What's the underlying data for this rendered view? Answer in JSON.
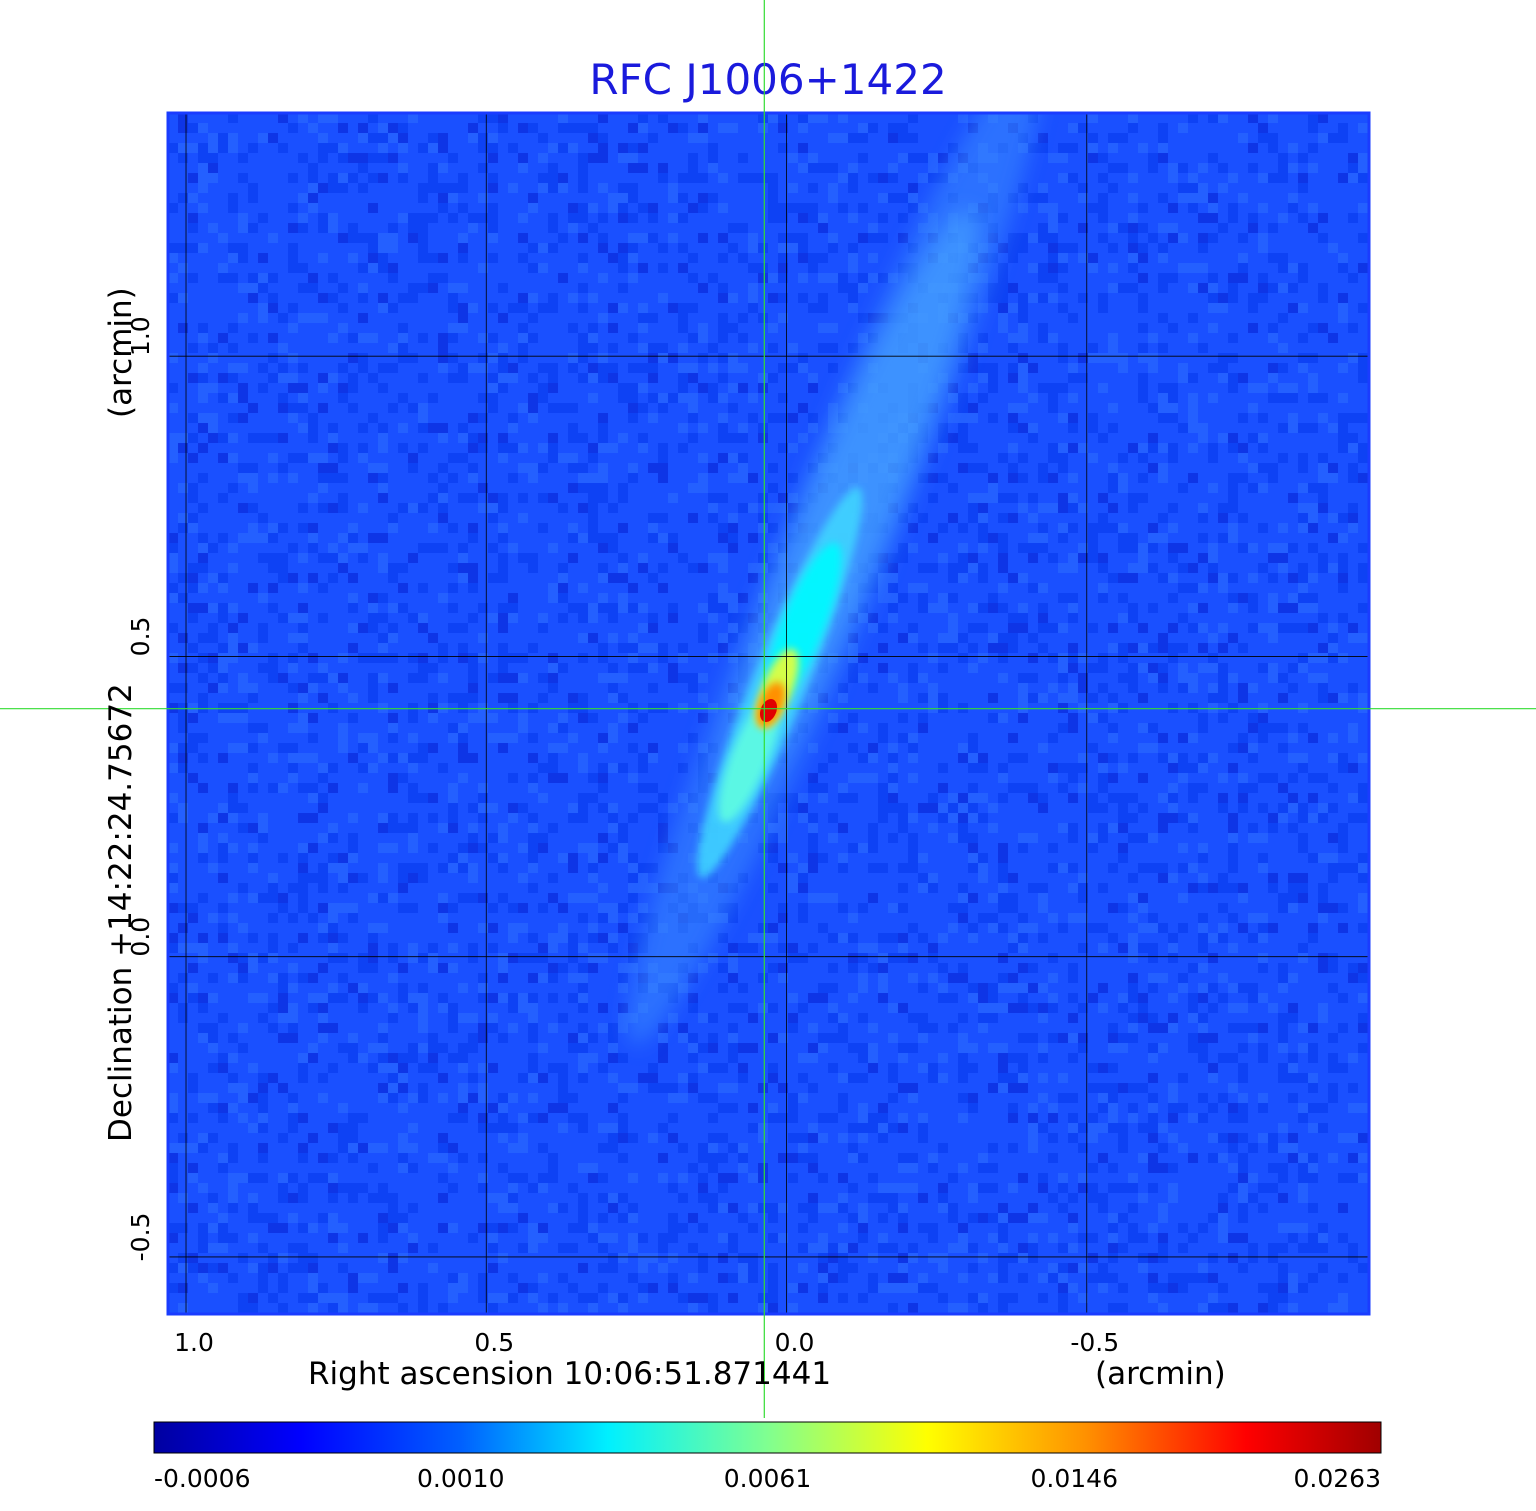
{
  "chart_data": {
    "type": "heatmap",
    "title": "RFC J1006+1422",
    "xlabel": "Right ascension  10:06:51.871441",
    "xunit": "(arcmin)",
    "ylabel": "Declination  +14:22:24.75672",
    "yunit": "(arcmin)",
    "x_ticks": [
      {
        "value": 1.0,
        "label": "1.0"
      },
      {
        "value": 0.5,
        "label": "0.5"
      },
      {
        "value": 0.0,
        "label": "0.0"
      },
      {
        "value": -0.5,
        "label": "-0.5"
      }
    ],
    "y_ticks": [
      {
        "value": 1.0,
        "label": "1.0"
      },
      {
        "value": 0.5,
        "label": "0.5"
      },
      {
        "value": 0.0,
        "label": "0.0"
      },
      {
        "value": -0.5,
        "label": "-0.5"
      }
    ],
    "xlim": [
      1.03,
      -0.97
    ],
    "ylim": [
      -0.595,
      1.405
    ],
    "grid": true,
    "crosshair": {
      "x": 0.037,
      "y": 0.413
    },
    "peak": {
      "x": 0.03,
      "y": 0.41,
      "value": 0.0263
    },
    "jet": {
      "angle_from_north_deg": 22,
      "extent_arcmin": [
        -0.6,
        1.2
      ]
    },
    "colorbar": {
      "colormap": "jet",
      "ticks": [
        "-0.0006",
        "0.0010",
        "0.0061",
        "0.0146",
        "0.0263"
      ]
    },
    "colors": {
      "title": "#1a1adc",
      "grid": "#000000",
      "crosshair": "#33dd33",
      "frame": "#1a3cff",
      "background_map": "#1a50ff"
    }
  }
}
